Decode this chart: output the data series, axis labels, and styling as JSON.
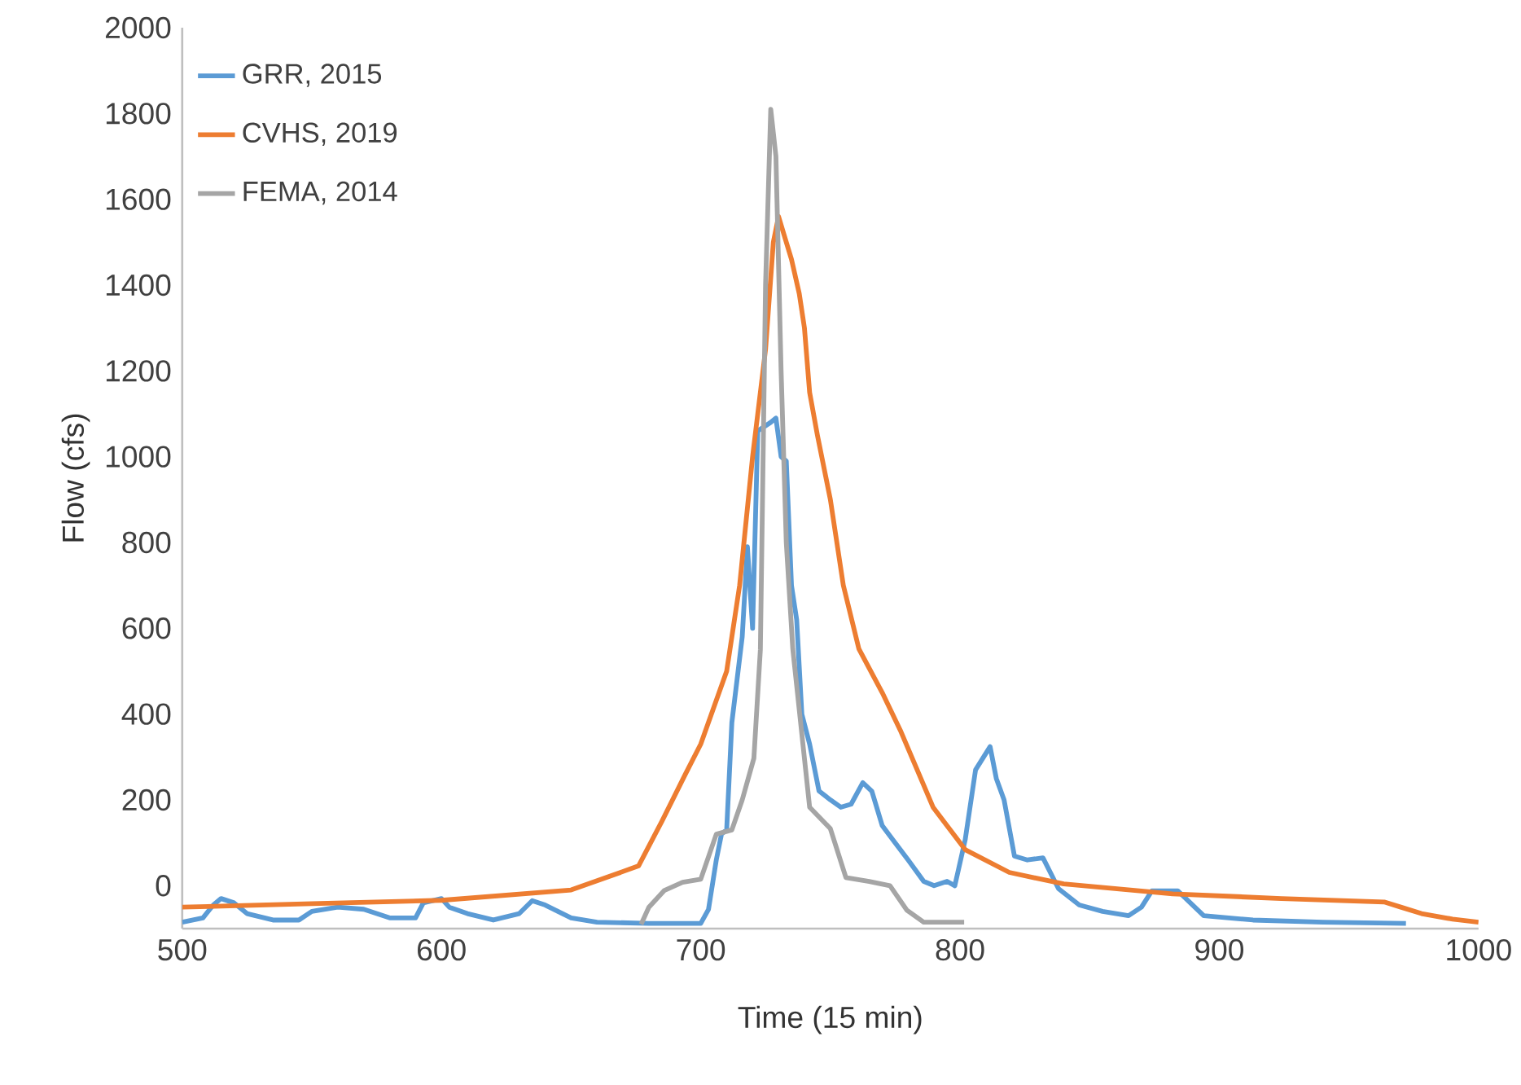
{
  "chart_data": {
    "type": "line",
    "xlabel": "Time (15 min)",
    "ylabel": "Flow (cfs)",
    "xlim": [
      500,
      1000
    ],
    "xticks": [
      500,
      600,
      700,
      800,
      900,
      1000
    ],
    "ylim": [
      -100,
      2000
    ],
    "yticks": [
      0,
      200,
      400,
      600,
      800,
      1000,
      1200,
      1400,
      1600,
      1800,
      2000
    ],
    "grid": false,
    "legend": "top left",
    "marker": "none",
    "line_style": "solid",
    "series": [
      {
        "name": "GRR, 2015",
        "color": "#5b9bd5",
        "x": [
          500,
          508,
          512,
          515,
          520,
          525,
          535,
          545,
          550,
          560,
          570,
          580,
          590,
          593,
          600,
          603,
          610,
          620,
          630,
          635,
          640,
          650,
          660,
          680,
          700,
          703,
          706,
          708,
          710,
          712,
          714,
          716,
          718,
          720,
          722,
          727,
          729,
          731,
          733,
          735,
          737,
          739,
          742,
          745.6,
          750,
          754,
          758,
          762.5,
          766,
          770,
          775,
          780,
          786,
          790,
          795,
          798,
          802,
          806,
          811.6,
          814,
          817,
          821,
          826,
          832,
          838,
          846,
          855,
          865,
          870,
          874,
          884,
          894,
          913,
          940,
          972
        ],
        "values": [
          -85,
          -75,
          -45,
          -30,
          -40,
          -65,
          -80,
          -80,
          -60,
          -50,
          -55,
          -75,
          -75,
          -40,
          -30,
          -50,
          -65,
          -80,
          -65,
          -35,
          -45,
          -75,
          -85,
          -88,
          -88,
          -55,
          60,
          120,
          130,
          380,
          480,
          580,
          790,
          600,
          1060,
          1080,
          1090,
          1000,
          990,
          700,
          620,
          400,
          330,
          221,
          200,
          183,
          190,
          240,
          220,
          140,
          100,
          60,
          10,
          0,
          10,
          0,
          107,
          270,
          324,
          250,
          200,
          69,
          60,
          65,
          -7,
          -45,
          -60,
          -70,
          -50,
          -12,
          -12,
          -70,
          -80,
          -85,
          -88
        ]
      },
      {
        "name": "CVHS, 2019",
        "color": "#ed7d31",
        "x": [
          500,
          550,
          600,
          650,
          676,
          685,
          694,
          700,
          710,
          715,
          720,
          725,
          728,
          730,
          732,
          735,
          738,
          740,
          742,
          745,
          750,
          755,
          761,
          770,
          777,
          789.6,
          802,
          819,
          840,
          882,
          924,
          963.6,
          970,
          978,
          990,
          1000
        ],
        "values": [
          -50,
          -42,
          -34,
          -10,
          46,
          150,
          259,
          330,
          500,
          700,
          1000,
          1250,
          1500,
          1560,
          1520,
          1460,
          1380,
          1300,
          1150,
          1050,
          900,
          700,
          552,
          450,
          362,
          183,
          84,
          31,
          4,
          -19,
          -30,
          -38,
          -50,
          -65,
          -78,
          -85
        ]
      },
      {
        "name": "FEMA, 2014",
        "color": "#a5a5a5",
        "x": [
          677,
          680,
          686,
          693,
          700,
          706,
          712,
          716,
          720.5,
          723,
          725,
          727,
          729,
          731,
          733,
          735.5,
          742,
          750,
          756,
          765,
          773,
          779.5,
          786,
          801.6
        ],
        "values": [
          -90,
          -50,
          -11,
          8,
          15,
          120,
          130,
          200,
          297,
          550,
          1400,
          1810,
          1700,
          1200,
          800,
          552,
          183,
          133,
          19,
          10,
          0,
          -57,
          -85,
          -85
        ]
      }
    ]
  }
}
